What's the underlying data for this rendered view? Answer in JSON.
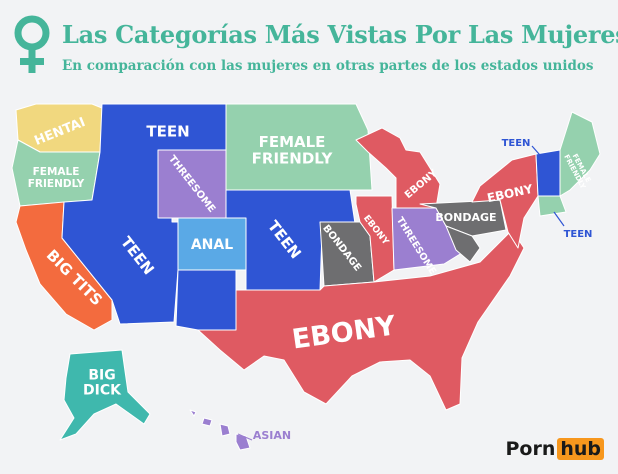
{
  "header": {
    "title": "Las Categorías Más Vistas Por Las Mujeres",
    "subtitle": "En comparación con las mujeres en otras partes de los estados unidos"
  },
  "colors": {
    "title": "#45b59a",
    "teen": "#2f55d4",
    "ebony": "#df5a62",
    "female_friendly": "#95d1ae",
    "hentai": "#f1d87f",
    "big_tits": "#f36b3e",
    "threesome": "#9b7fd0",
    "anal": "#5aa9e6",
    "bondage": "#6e6e70",
    "big_dick": "#3fb8ad",
    "asian": "#9b7fd0"
  },
  "regions": {
    "hentai": "HENTAI",
    "female_friendly_nw": "FEMALE\nFRIENDLY",
    "teen_mountain": "TEEN",
    "female_friendly_north": "FEMALE\nFRIENDLY",
    "threesome_west": "THREESOME",
    "teen_west": "TEEN",
    "anal": "ANAL",
    "teen_plains": "TEEN",
    "bondage_central": "BONDAGE",
    "big_tits": "BIG TITS",
    "ebony_south": "EBONY",
    "ebony_michigan": "EBONY",
    "ebony_illinois": "EBONY",
    "threesome_east": "THREESOME",
    "bondage_east": "BONDAGE",
    "ebony_ny": "EBONY",
    "teen_ne_top": "TEEN",
    "female_friendly_ne": "FEMALE\nFRIENDLY",
    "teen_ne_bottom": "TEEN",
    "big_dick": "BIG\nDICK",
    "asian": "ASIAN"
  },
  "logo": {
    "part1": "Porn",
    "part2": "hub"
  }
}
